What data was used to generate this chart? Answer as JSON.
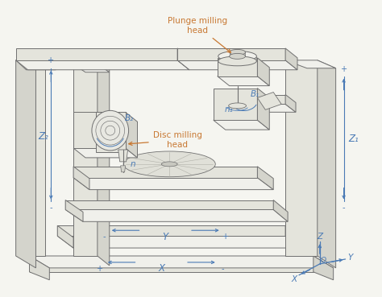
{
  "bg_color": "#f5f5f0",
  "lc": "#707070",
  "bc": "#4a7ab5",
  "oc": "#c87832",
  "lw": 0.7,
  "face_light": "#f0f0eb",
  "face_mid": "#e4e4dc",
  "face_dark": "#d4d4cc",
  "face_side": "#dcdcd4",
  "labels": {
    "plunge_milling": "Plunge milling\nhead",
    "disc_milling": "Disc milling\nhead",
    "B1": "B₁",
    "B2": "B₂",
    "Z1": "Z₁",
    "Z2": "Z₂",
    "n1": "n₁",
    "n": "n",
    "X": "X",
    "Y": "Y",
    "Z": "Z",
    "O": "O"
  }
}
